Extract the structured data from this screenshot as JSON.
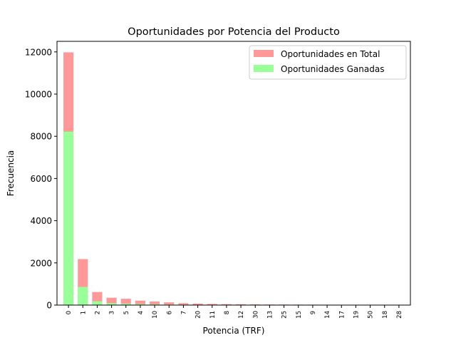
{
  "chart_data": {
    "type": "bar",
    "title": "Oportunidades por Potencia del Producto",
    "xlabel": "Potencia (TRF)",
    "ylabel": "Frecuencia",
    "ylim": [
      0,
      12500
    ],
    "yticks": [
      0,
      2000,
      4000,
      6000,
      8000,
      10000,
      12000
    ],
    "grid": false,
    "legend_position": "top-right",
    "categories": [
      "0",
      "1",
      "2",
      "3",
      "5",
      "4",
      "10",
      "6",
      "7",
      "20",
      "11",
      "8",
      "12",
      "30",
      "13",
      "25",
      "15",
      "9",
      "14",
      "17",
      "19",
      "50",
      "18",
      "28"
    ],
    "series": [
      {
        "name": "Oportunidades en Total",
        "color": "#ff9999",
        "values": [
          11980,
          2180,
          620,
          350,
          300,
          210,
          170,
          130,
          90,
          70,
          55,
          45,
          40,
          32,
          28,
          25,
          22,
          20,
          18,
          15,
          12,
          10,
          8,
          6
        ]
      },
      {
        "name": "Oportunidades Ganadas",
        "color": "#99ff99",
        "values": [
          8220,
          860,
          180,
          90,
          70,
          50,
          40,
          30,
          20,
          15,
          12,
          10,
          8,
          7,
          6,
          5,
          5,
          4,
          4,
          3,
          3,
          2,
          2,
          1
        ]
      }
    ]
  }
}
